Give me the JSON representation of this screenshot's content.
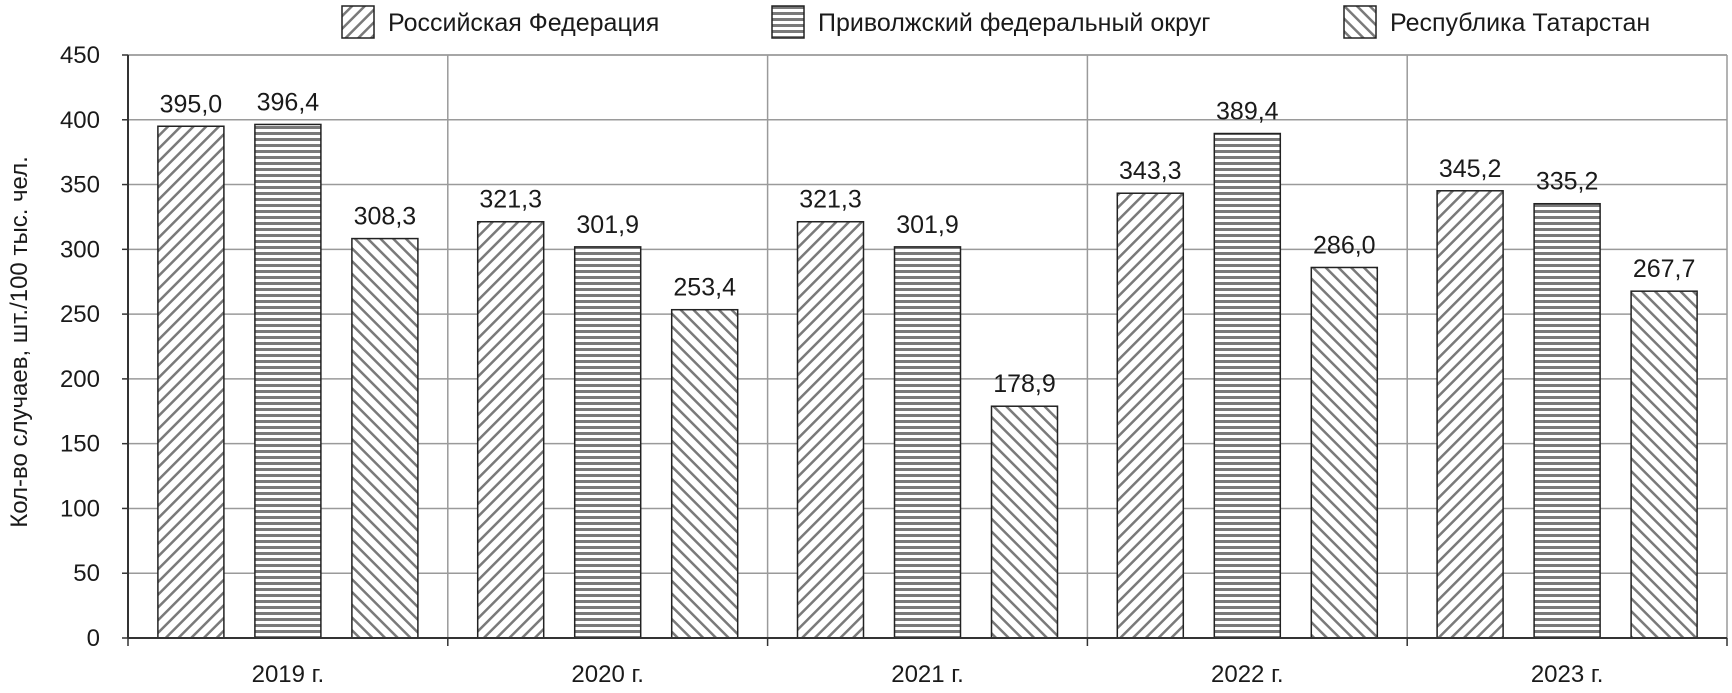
{
  "chart_data": {
    "type": "bar",
    "title": "",
    "xlabel": "",
    "ylabel": "Кол-во случаев, шт./100 тыс. чел.",
    "ylim": [
      0,
      450
    ],
    "yticks": [
      0,
      50,
      100,
      150,
      200,
      250,
      300,
      350,
      400,
      450
    ],
    "grid": true,
    "legend_position": "top",
    "categories": [
      "2019 г.",
      "2020 г.",
      "2021 г.",
      "2022 г.",
      "2023 г."
    ],
    "series": [
      {
        "name": "Российская Федерация",
        "pattern": "diagonal-up",
        "values": [
          395.0,
          321.3,
          321.3,
          343.3,
          345.2
        ],
        "labels": [
          "395,0",
          "321,3",
          "321,3",
          "343,3",
          "345,2"
        ]
      },
      {
        "name": "Приволжский федеральный округ",
        "pattern": "horizontal",
        "values": [
          396.4,
          301.9,
          301.9,
          389.4,
          335.2
        ],
        "labels": [
          "396,4",
          "301,9",
          "301,9",
          "389,4",
          "335,2"
        ]
      },
      {
        "name": "Республика Татарстан",
        "pattern": "diagonal-down",
        "values": [
          308.3,
          253.4,
          178.9,
          286.0,
          267.7
        ],
        "labels": [
          "308,3",
          "253,4",
          "178,9",
          "286,0",
          "267,7"
        ]
      }
    ],
    "colors": {
      "pattern_stroke": "#7a7a7a",
      "grid": "#9a9a9a",
      "axis": "#333333",
      "bar_outline": "#222222"
    }
  }
}
